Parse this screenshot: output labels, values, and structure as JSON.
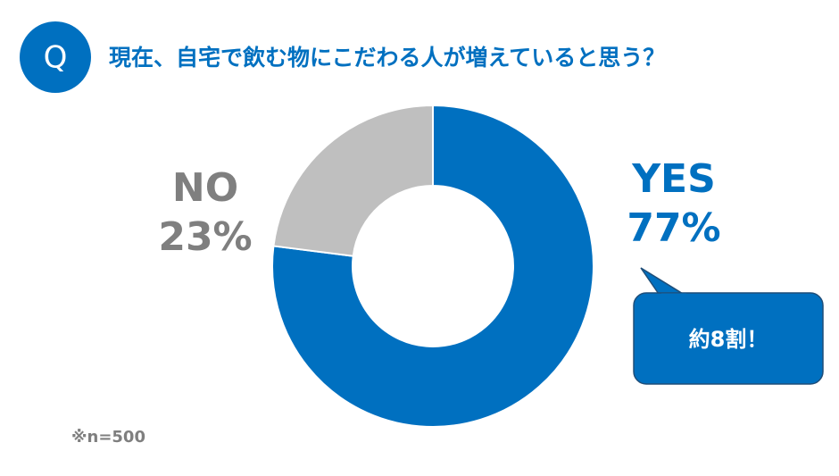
{
  "chart_data": {
    "type": "donut",
    "badge": "Q",
    "title": "現在、自宅で飲む物にこだわる人が増えていると思う？",
    "categories": [
      "YES",
      "NO"
    ],
    "values": [
      77,
      23
    ],
    "value_labels": [
      "77%",
      "23%"
    ],
    "colors": [
      "#0070c0",
      "#bfbfbf"
    ],
    "label_colors": [
      "#0070c0",
      "#7f7f7f"
    ],
    "callout": "約8割！",
    "note": "※n=500"
  }
}
